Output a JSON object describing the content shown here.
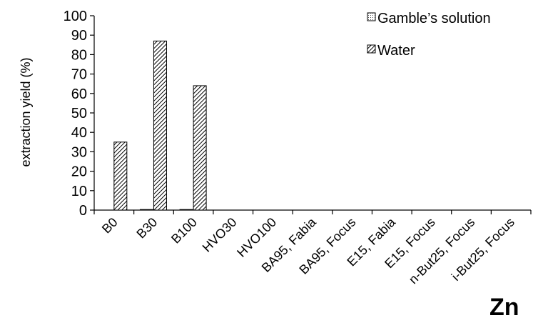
{
  "chart_data": {
    "type": "bar",
    "title": "",
    "xlabel": "",
    "ylabel": "extraction yield (%)",
    "ylim": [
      0,
      100
    ],
    "yticks": [
      0,
      10,
      20,
      30,
      40,
      50,
      60,
      70,
      80,
      90,
      100
    ],
    "categories": [
      "B0",
      "B30",
      "B100",
      "HVO30",
      "HVO100",
      "BA95, Fabia",
      "BA95, Focus",
      "E15, Fabia",
      "E15, Focus",
      "n-But25, Focus",
      "i-But25, Focus"
    ],
    "series": [
      {
        "name": "Gamble’s solution",
        "values": [
          0,
          0.3,
          0.3,
          0,
          0,
          0,
          0,
          0,
          0,
          0,
          0
        ],
        "pattern": "dotted-grid"
      },
      {
        "name": "Water",
        "values": [
          35,
          87,
          64,
          0,
          0,
          0,
          0,
          0,
          0,
          0,
          0
        ],
        "pattern": "diagonal-hatch"
      }
    ],
    "legend_position": "top-right",
    "annotation": "Zn",
    "grid": false
  }
}
